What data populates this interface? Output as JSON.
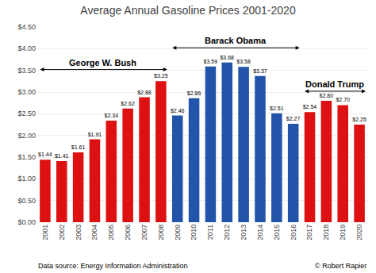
{
  "chart_data": {
    "type": "bar",
    "title": "Average Annual Gasoline Prices 2001-2020",
    "categories": [
      "2001",
      "2002",
      "2003",
      "2004",
      "2005",
      "2006",
      "2007",
      "2008",
      "2009",
      "2010",
      "2011",
      "2012",
      "2013",
      "2014",
      "2015",
      "2016",
      "2017",
      "2018",
      "2019",
      "2020"
    ],
    "values": [
      1.44,
      1.41,
      1.61,
      1.91,
      2.34,
      2.62,
      2.88,
      3.25,
      2.46,
      2.86,
      3.59,
      3.68,
      3.58,
      3.37,
      2.51,
      2.27,
      2.54,
      2.8,
      2.7,
      2.25
    ],
    "value_labels": [
      "$1.44",
      "$1.41",
      "$1.61",
      "$1.91",
      "$2.34",
      "$2.62",
      "$2.88",
      "$3.25",
      "$2.46",
      "$2.86",
      "$3.59",
      "$3.68",
      "$3.58",
      "$3.37",
      "$2.51",
      "$2.27",
      "$2.54",
      "$2.80",
      "$2.70",
      "$2.25"
    ],
    "data_labels": true,
    "colors": [
      "#dd1111",
      "#dd1111",
      "#dd1111",
      "#dd1111",
      "#dd1111",
      "#dd1111",
      "#dd1111",
      "#dd1111",
      "#2255aa",
      "#2255aa",
      "#2255aa",
      "#2255aa",
      "#2255aa",
      "#2255aa",
      "#2255aa",
      "#2255aa",
      "#dd1111",
      "#dd1111",
      "#dd1111",
      "#dd1111"
    ],
    "ylim": [
      0.0,
      4.5
    ],
    "yticks": [
      {
        "value": 0.0,
        "label": "$0.00"
      },
      {
        "value": 0.5,
        "label": "$0.50"
      },
      {
        "value": 1.0,
        "label": "$1.00"
      },
      {
        "value": 1.5,
        "label": "$1.50"
      },
      {
        "value": 2.0,
        "label": "$2.00"
      },
      {
        "value": 2.5,
        "label": "$2.50"
      },
      {
        "value": 3.0,
        "label": "$3.00"
      },
      {
        "value": 3.5,
        "label": "$3.50"
      },
      {
        "value": 4.0,
        "label": "$4.00"
      },
      {
        "value": 4.5,
        "label": "$4.50"
      }
    ],
    "grid": true,
    "annotations": [
      {
        "text": "George W. Bush",
        "from": "2001",
        "to": "2008",
        "y": 3.52
      },
      {
        "text": "Barack Obama",
        "from": "2009",
        "to": "2016",
        "y": 4.02
      },
      {
        "text": "Donald Trump",
        "from": "2017",
        "to": "2020",
        "y": 3.02
      }
    ],
    "footer": [
      "Data source: Energy Information Administration",
      "© Robert Rapier"
    ]
  }
}
